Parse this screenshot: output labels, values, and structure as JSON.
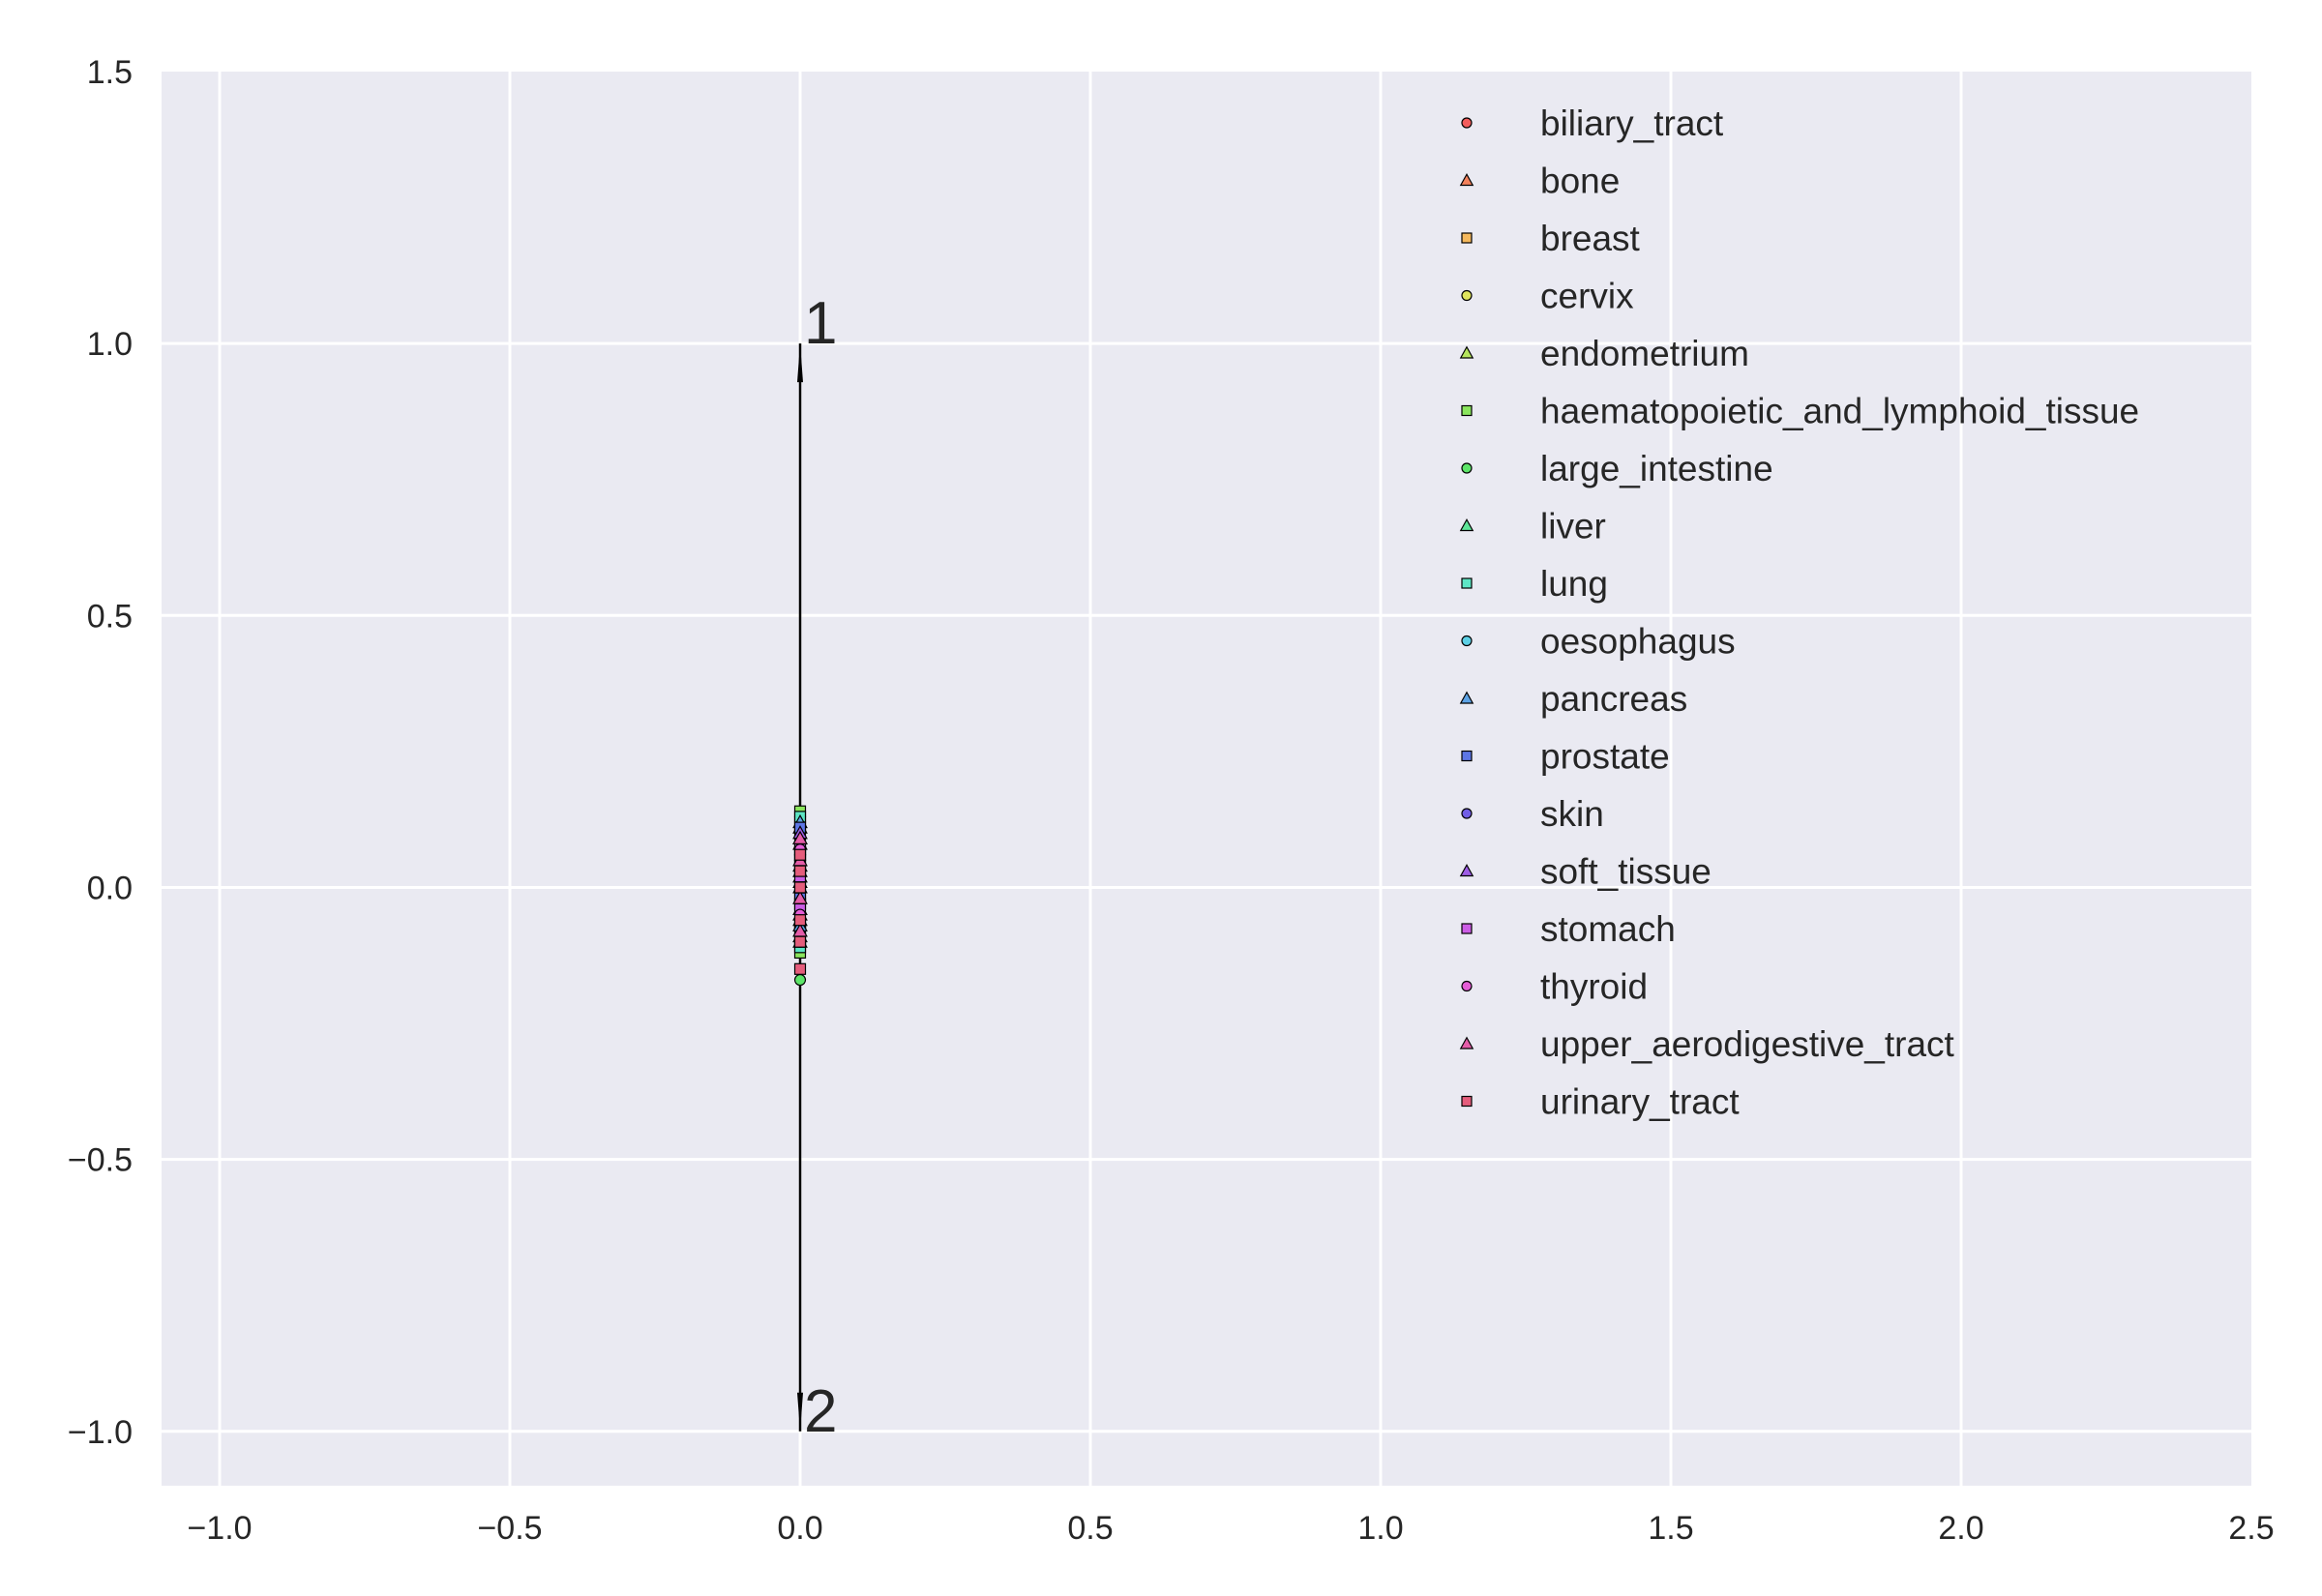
{
  "chart_data": {
    "type": "scatter",
    "title": "",
    "xlabel": "",
    "ylabel": "",
    "xlim": [
      -1.1,
      2.5
    ],
    "ylim": [
      -1.1,
      1.5
    ],
    "xticks": [
      -1.0,
      -0.5,
      0.0,
      0.5,
      1.0,
      1.5,
      2.0,
      2.5
    ],
    "yticks": [
      -1.0,
      -0.5,
      0.0,
      0.5,
      1.0,
      1.5
    ],
    "grid": true,
    "background": "#eaeaf2",
    "grid_color": "#ffffff",
    "legend_position": "top-right",
    "loading_vectors": [
      {
        "label": "1",
        "x": 0.0,
        "y": 1.0
      },
      {
        "label": "2",
        "x": 0.0,
        "y": -1.0
      }
    ],
    "series": [
      {
        "name": "biliary_tract",
        "marker": "circle",
        "color": "#f45d5d",
        "points": [
          [
            0.0,
            0.05
          ],
          [
            0.0,
            -0.04
          ],
          [
            0.0,
            0.01
          ]
        ]
      },
      {
        "name": "bone",
        "marker": "triangle",
        "color": "#f4825d",
        "points": [
          [
            0.0,
            0.08
          ],
          [
            0.0,
            -0.06
          ],
          [
            0.0,
            0.02
          ],
          [
            0.0,
            -0.1
          ]
        ]
      },
      {
        "name": "breast",
        "marker": "square",
        "color": "#f4b85d",
        "points": [
          [
            0.0,
            0.1
          ],
          [
            0.0,
            -0.08
          ],
          [
            0.0,
            0.04
          ],
          [
            0.0,
            -0.02
          ],
          [
            0.0,
            0.06
          ]
        ]
      },
      {
        "name": "cervix",
        "marker": "circle",
        "color": "#e0e55d",
        "points": [
          [
            0.0,
            0.07
          ],
          [
            0.0,
            -0.03
          ],
          [
            0.0,
            0.0
          ]
        ]
      },
      {
        "name": "endometrium",
        "marker": "triangle",
        "color": "#b5e55d",
        "points": [
          [
            0.0,
            0.09
          ],
          [
            0.0,
            -0.05
          ],
          [
            0.0,
            0.03
          ]
        ]
      },
      {
        "name": "haematopoietic_and_lymphoid_tissue",
        "marker": "square",
        "color": "#8ae55d",
        "points": [
          [
            0.0,
            0.14
          ],
          [
            0.0,
            0.12
          ],
          [
            0.0,
            -0.12
          ],
          [
            0.0,
            0.05
          ],
          [
            0.0,
            -0.07
          ],
          [
            0.0,
            0.0
          ]
        ]
      },
      {
        "name": "large_intestine",
        "marker": "circle",
        "color": "#5de569",
        "points": [
          [
            0.0,
            -0.17
          ],
          [
            0.0,
            0.06
          ],
          [
            0.0,
            -0.09
          ],
          [
            0.0,
            0.02
          ]
        ]
      },
      {
        "name": "liver",
        "marker": "triangle",
        "color": "#5de597",
        "points": [
          [
            0.0,
            0.11
          ],
          [
            0.0,
            -0.04
          ],
          [
            0.0,
            0.01
          ]
        ]
      },
      {
        "name": "lung",
        "marker": "square",
        "color": "#5de5c4",
        "points": [
          [
            0.0,
            0.13
          ],
          [
            0.0,
            -0.11
          ],
          [
            0.0,
            0.07
          ],
          [
            0.0,
            -0.03
          ],
          [
            0.0,
            0.03
          ],
          [
            0.0,
            -0.08
          ]
        ]
      },
      {
        "name": "oesophagus",
        "marker": "circle",
        "color": "#5dd0e5",
        "points": [
          [
            0.0,
            0.1
          ],
          [
            0.0,
            -0.06
          ],
          [
            0.0,
            0.02
          ]
        ]
      },
      {
        "name": "pancreas",
        "marker": "triangle",
        "color": "#5da3e5",
        "points": [
          [
            0.0,
            0.12
          ],
          [
            0.0,
            -0.07
          ],
          [
            0.0,
            0.04
          ]
        ]
      },
      {
        "name": "prostate",
        "marker": "square",
        "color": "#5d76e5",
        "points": [
          [
            0.0,
            0.11
          ],
          [
            0.0,
            -0.02
          ]
        ]
      },
      {
        "name": "skin",
        "marker": "circle",
        "color": "#715de5",
        "points": [
          [
            0.0,
            0.09
          ],
          [
            0.0,
            -0.1
          ],
          [
            0.0,
            0.03
          ],
          [
            0.0,
            -0.05
          ]
        ]
      },
      {
        "name": "soft_tissue",
        "marker": "triangle",
        "color": "#9e5de5",
        "points": [
          [
            0.0,
            0.1
          ],
          [
            0.0,
            -0.09
          ],
          [
            0.0,
            0.0
          ]
        ]
      },
      {
        "name": "stomach",
        "marker": "square",
        "color": "#cc5de5",
        "points": [
          [
            0.0,
            0.08
          ],
          [
            0.0,
            -0.1
          ],
          [
            0.0,
            0.02
          ],
          [
            0.0,
            -0.04
          ]
        ]
      },
      {
        "name": "thyroid",
        "marker": "circle",
        "color": "#e55dd6",
        "points": [
          [
            0.0,
            0.07
          ],
          [
            0.0,
            -0.05
          ]
        ]
      },
      {
        "name": "upper_aerodigestive_tract",
        "marker": "triangle",
        "color": "#e55da9",
        "points": [
          [
            0.0,
            0.09
          ],
          [
            0.0,
            -0.08
          ],
          [
            0.0,
            0.05
          ],
          [
            0.0,
            -0.02
          ]
        ]
      },
      {
        "name": "urinary_tract",
        "marker": "square",
        "color": "#e55d7c",
        "points": [
          [
            0.0,
            0.06
          ],
          [
            0.0,
            -0.15
          ],
          [
            0.0,
            0.03
          ],
          [
            0.0,
            -0.06
          ],
          [
            0.0,
            -0.1
          ],
          [
            0.0,
            0.0
          ]
        ]
      }
    ]
  }
}
